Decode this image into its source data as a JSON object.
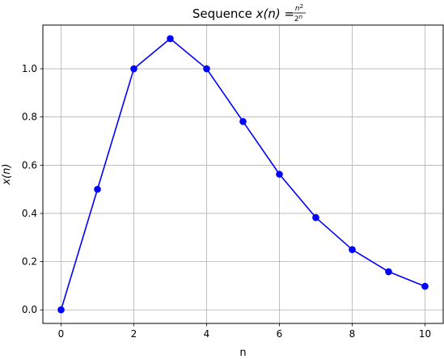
{
  "chart_data": {
    "type": "line",
    "title": {
      "prefix": "Sequence ",
      "lhs": "x(n)",
      "equals": " = ",
      "numerator": "n",
      "numerator_exp": "2",
      "denominator": "2",
      "denominator_exp": "n"
    },
    "xlabel": "n",
    "ylabel": "x(n)",
    "x": [
      0,
      1,
      2,
      3,
      4,
      5,
      6,
      7,
      8,
      9,
      10
    ],
    "series": [
      {
        "values": [
          0,
          0.5,
          1.0,
          1.125,
          1.0,
          0.78125,
          0.5625,
          0.3828125,
          0.25,
          0.158203125,
          0.09765625
        ]
      }
    ],
    "xlim": [
      -0.5,
      10.5
    ],
    "ylim": [
      -0.05625,
      1.18125
    ],
    "xticks": [
      0,
      2,
      4,
      6,
      8,
      10
    ],
    "xtick_labels": [
      "0",
      "2",
      "4",
      "6",
      "8",
      "10"
    ],
    "yticks": [
      0,
      0.2,
      0.4,
      0.6,
      0.8,
      1.0
    ],
    "ytick_labels": [
      "0.0",
      "0.2",
      "0.4",
      "0.6",
      "0.8",
      "1.0"
    ],
    "grid": true,
    "legend": "none",
    "colors": {
      "line": "#0000ff",
      "marker": "#0000ff",
      "grid": "#b0b0b0",
      "axes": "#000000"
    }
  }
}
